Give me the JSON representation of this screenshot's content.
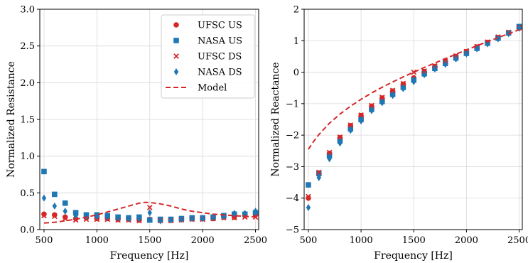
{
  "colors": {
    "red": "#d62728",
    "blue": "#1f77b4",
    "grid": "#d9d9d9"
  },
  "chart_data": [
    {
      "type": "scatter",
      "xlabel": "Frequency [Hz]",
      "ylabel": "Normalized Resistance",
      "xlim": [
        460,
        2530
      ],
      "ylim": [
        0,
        3.0
      ],
      "xticks": [
        500,
        1000,
        1500,
        2000,
        2500
      ],
      "yticks": [
        0.0,
        0.5,
        1.0,
        1.5,
        2.0,
        2.5,
        3.0
      ],
      "xtick_labels": [
        "500",
        "1000",
        "1500",
        "2000",
        "2500"
      ],
      "ytick_labels": [
        "0.0",
        "0.5",
        "1.0",
        "1.5",
        "2.0",
        "2.5",
        "3.0"
      ],
      "grid": true,
      "legend_position": "top-right",
      "x": [
        500,
        600,
        700,
        800,
        900,
        1000,
        1100,
        1200,
        1300,
        1400,
        1500,
        1600,
        1700,
        1800,
        1900,
        2000,
        2100,
        2200,
        2300,
        2400,
        2500
      ],
      "series": [
        {
          "name": "UFSC US",
          "marker": "circle",
          "color": "red",
          "values": [
            0.21,
            0.2,
            0.17,
            0.15,
            0.16,
            0.15,
            0.15,
            0.14,
            0.14,
            0.13,
            0.14,
            0.13,
            0.13,
            0.14,
            0.15,
            0.15,
            0.15,
            0.17,
            0.17,
            0.19,
            0.2
          ]
        },
        {
          "name": "NASA US",
          "marker": "square",
          "color": "blue",
          "values": [
            0.79,
            0.48,
            0.36,
            0.23,
            0.2,
            0.2,
            0.19,
            0.17,
            0.16,
            0.17,
            0.13,
            0.14,
            0.14,
            0.15,
            0.16,
            0.16,
            0.17,
            0.19,
            0.21,
            0.21,
            0.23
          ]
        },
        {
          "name": "UFSC DS",
          "marker": "x",
          "color": "red",
          "values": [
            0.19,
            0.18,
            0.15,
            0.13,
            0.14,
            0.14,
            0.14,
            0.13,
            0.13,
            0.12,
            0.3,
            0.12,
            0.12,
            0.13,
            0.14,
            0.14,
            0.15,
            0.16,
            0.16,
            0.17,
            0.17
          ]
        },
        {
          "name": "NASA DS",
          "marker": "diamond",
          "color": "blue",
          "values": [
            0.43,
            0.32,
            0.25,
            0.19,
            0.18,
            0.18,
            0.17,
            0.16,
            0.15,
            0.15,
            0.23,
            0.12,
            0.13,
            0.14,
            0.15,
            0.15,
            0.17,
            0.18,
            0.22,
            0.22,
            0.25
          ]
        },
        {
          "name": "Model",
          "marker": "dashed-line",
          "color": "red",
          "x": [
            500,
            600,
            700,
            800,
            900,
            1000,
            1100,
            1200,
            1300,
            1400,
            1450,
            1500,
            1600,
            1700,
            1800,
            1900,
            2000,
            2100,
            2200,
            2300,
            2400,
            2500
          ],
          "values": [
            0.09,
            0.1,
            0.12,
            0.14,
            0.17,
            0.2,
            0.24,
            0.28,
            0.32,
            0.36,
            0.37,
            0.37,
            0.35,
            0.32,
            0.28,
            0.25,
            0.23,
            0.21,
            0.2,
            0.19,
            0.18,
            0.17
          ]
        }
      ]
    },
    {
      "type": "scatter",
      "xlabel": "Frequency [Hz]",
      "ylabel": "Normalized Reactance",
      "xlim": [
        460,
        2530
      ],
      "ylim": [
        -5,
        2
      ],
      "xticks": [
        500,
        1000,
        1500,
        2000,
        2500
      ],
      "yticks": [
        -5,
        -4,
        -3,
        -2,
        -1,
        0,
        1,
        2
      ],
      "xtick_labels": [
        "500",
        "1000",
        "1500",
        "2000",
        "2500"
      ],
      "ytick_labels": [
        "−5",
        "−4",
        "−3",
        "−2",
        "−1",
        "0",
        "1",
        "2"
      ],
      "grid": true,
      "x": [
        500,
        600,
        700,
        800,
        900,
        1000,
        1100,
        1200,
        1300,
        1400,
        1500,
        1600,
        1700,
        1800,
        1900,
        2000,
        2100,
        2200,
        2300,
        2400,
        2500
      ],
      "series": [
        {
          "name": "UFSC US",
          "marker": "circle",
          "color": "red",
          "values": [
            -4.0,
            -3.2,
            -2.58,
            -2.08,
            -1.7,
            -1.38,
            -1.08,
            -0.82,
            -0.6,
            -0.38,
            -0.18,
            0.02,
            0.18,
            0.34,
            0.5,
            0.65,
            0.8,
            0.95,
            1.1,
            1.25,
            1.4
          ]
        },
        {
          "name": "NASA US",
          "marker": "square",
          "color": "blue",
          "values": [
            -3.58,
            -3.22,
            -2.65,
            -2.18,
            -1.8,
            -1.5,
            -1.18,
            -0.93,
            -0.7,
            -0.48,
            -0.25,
            -0.05,
            0.12,
            0.28,
            0.45,
            0.6,
            0.76,
            0.92,
            1.08,
            1.25,
            1.45
          ]
        },
        {
          "name": "UFSC DS",
          "marker": "x",
          "color": "red",
          "values": [
            -3.95,
            -3.18,
            -2.55,
            -2.06,
            -1.68,
            -1.36,
            -1.06,
            -0.8,
            -0.58,
            -0.36,
            0.0,
            0.04,
            0.2,
            0.36,
            0.52,
            0.66,
            0.82,
            0.96,
            1.12,
            1.27,
            1.42
          ]
        },
        {
          "name": "NASA DS",
          "marker": "diamond",
          "color": "blue",
          "values": [
            -4.3,
            -3.35,
            -2.75,
            -2.25,
            -1.85,
            -1.55,
            -1.22,
            -0.97,
            -0.74,
            -0.52,
            -0.3,
            -0.08,
            0.1,
            0.25,
            0.42,
            0.58,
            0.74,
            0.9,
            1.06,
            1.22,
            1.4
          ]
        },
        {
          "name": "Model",
          "marker": "dashed-line",
          "color": "red",
          "x": [
            500,
            550,
            600,
            700,
            800,
            900,
            1000,
            1100,
            1200,
            1300,
            1400,
            1500,
            1600,
            1700,
            1800,
            1900,
            2000,
            2100,
            2200,
            2300,
            2400,
            2500
          ],
          "values": [
            -2.45,
            -2.2,
            -1.98,
            -1.62,
            -1.33,
            -1.08,
            -0.86,
            -0.66,
            -0.48,
            -0.31,
            -0.15,
            0.0,
            0.15,
            0.29,
            0.43,
            0.57,
            0.71,
            0.84,
            0.97,
            1.1,
            1.22,
            1.35
          ]
        }
      ]
    }
  ]
}
